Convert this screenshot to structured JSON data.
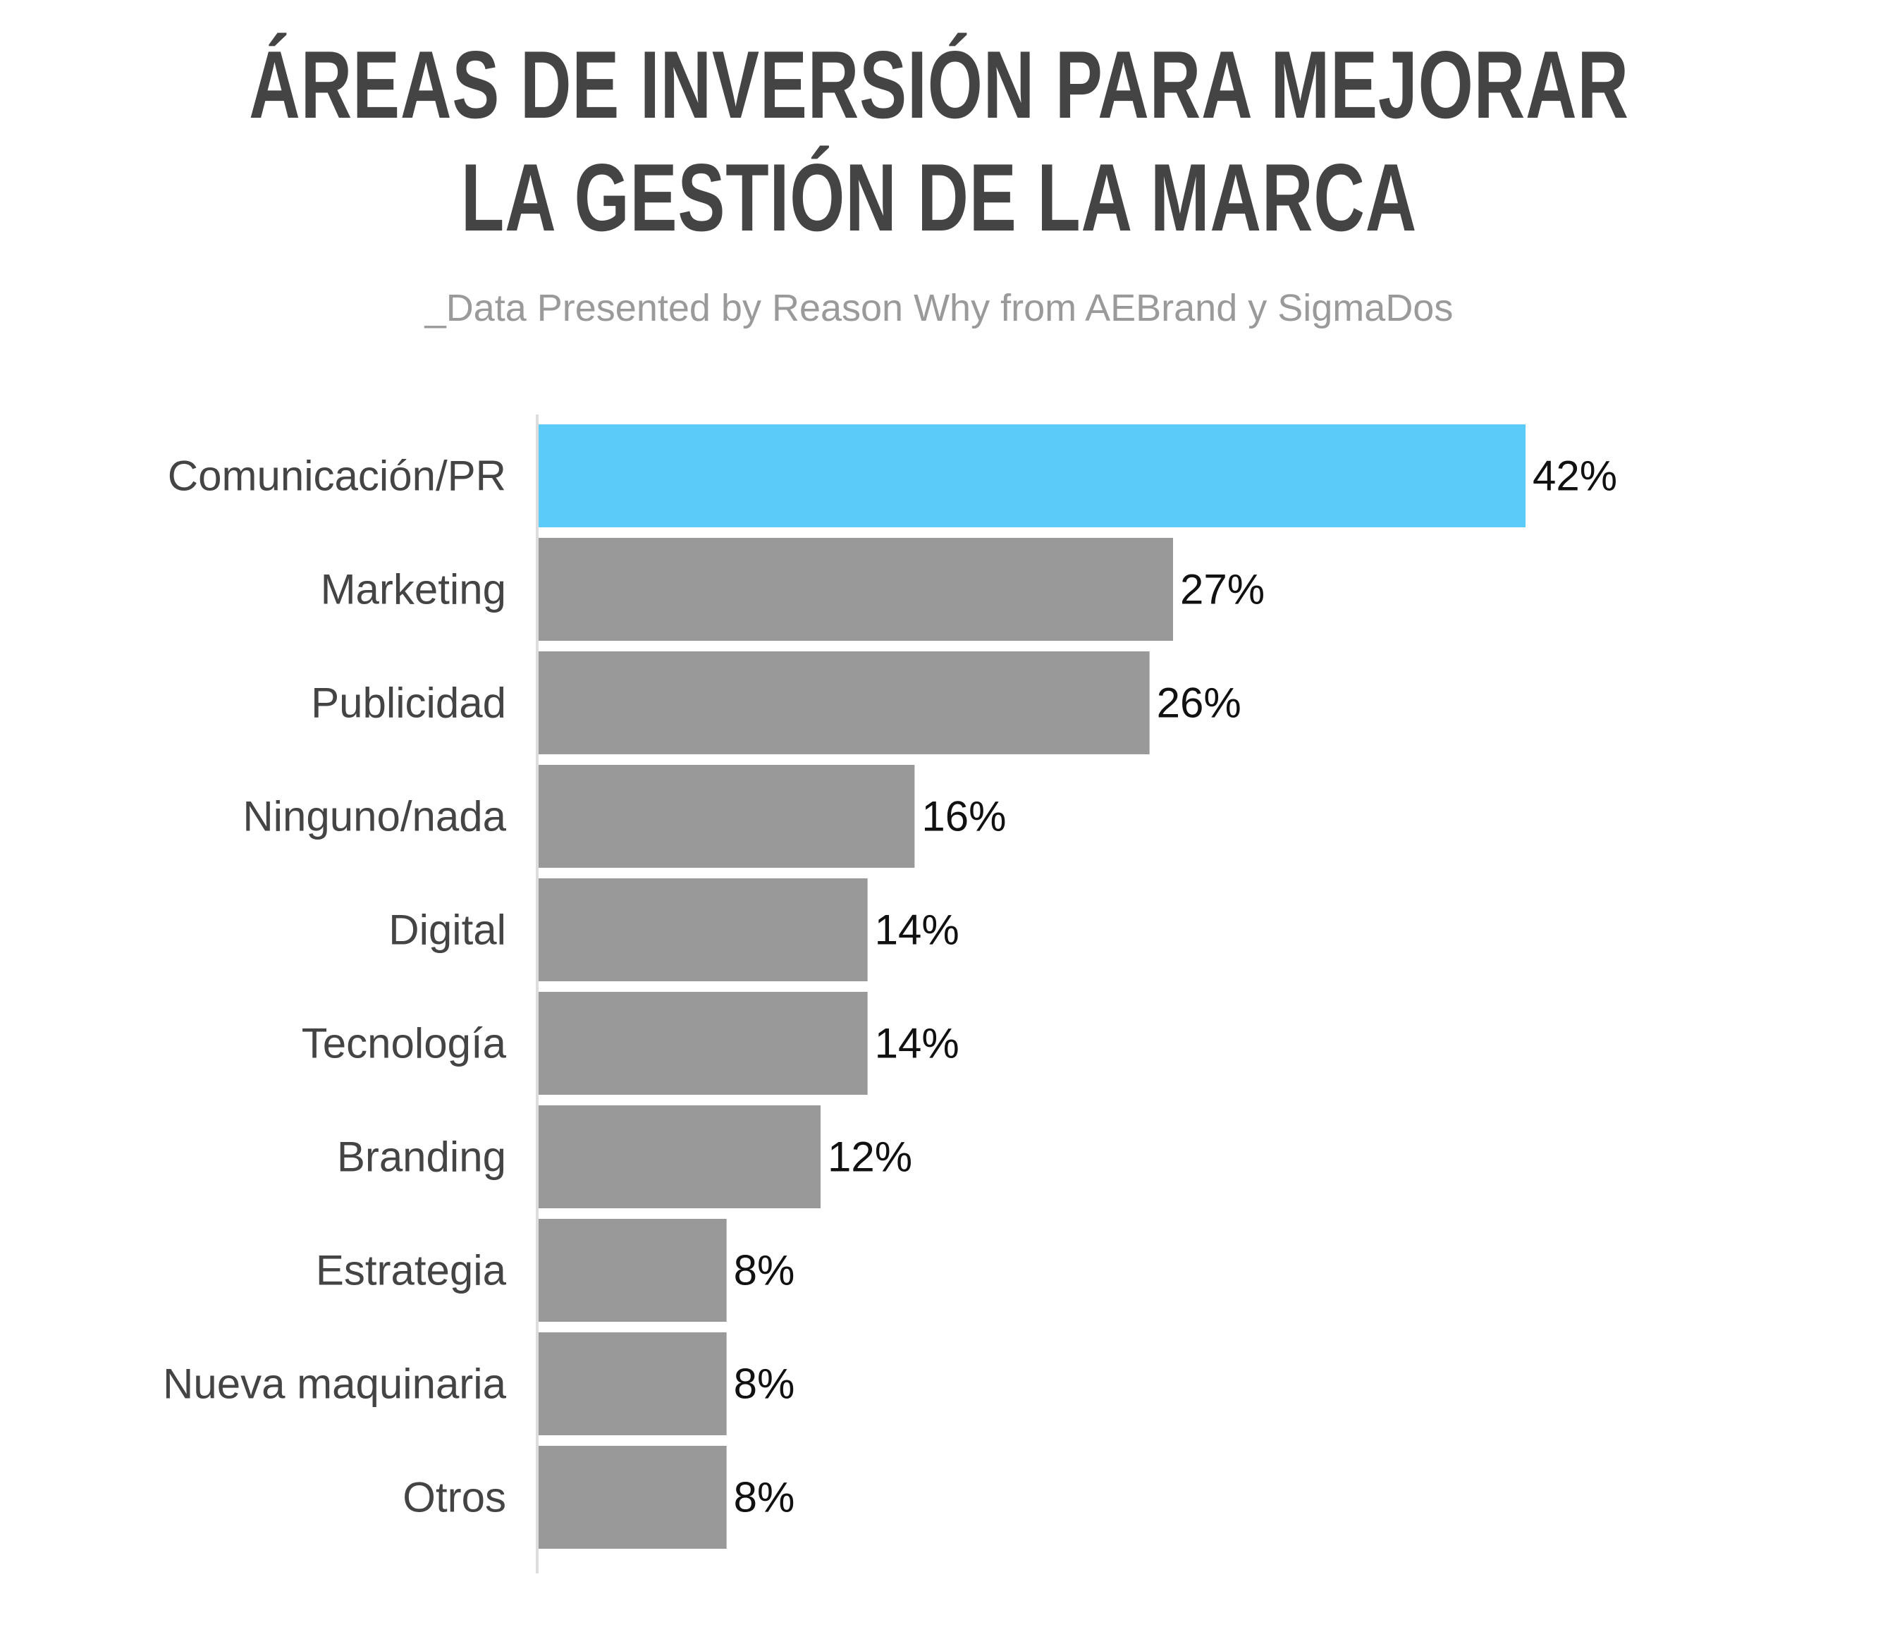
{
  "header": {
    "title": "ÁREAS DE INVERSIÓN PARA MEJORAR LA GESTIÓN DE LA MARCA",
    "subtitle": "_Data Presented by Reason Why from AEBrand y SigmaDos"
  },
  "colors": {
    "highlight": "#5bcbfa",
    "bar": "#999999",
    "axis": "#dddddd"
  },
  "chart_data": {
    "type": "bar",
    "orientation": "horizontal",
    "title": "ÁREAS DE INVERSIÓN PARA MEJORAR LA GESTIÓN DE LA MARCA",
    "subtitle": "_Data Presented by Reason Why from AEBrand y SigmaDos",
    "categories": [
      "Comunicación/PR",
      "Marketing",
      "Publicidad",
      "Ninguno/nada",
      "Digital",
      "Tecnología",
      "Branding",
      "Estrategia",
      "Nueva maquinaria",
      "Otros"
    ],
    "values": [
      42,
      27,
      26,
      16,
      14,
      14,
      12,
      8,
      8,
      8
    ],
    "value_labels": [
      "42%",
      "27%",
      "26%",
      "16%",
      "14%",
      "14%",
      "12%",
      "8%",
      "8%",
      "8%"
    ],
    "unit": "%",
    "highlight_index": 0,
    "xlim": [
      0,
      42
    ],
    "grid": false,
    "legend": "none"
  }
}
